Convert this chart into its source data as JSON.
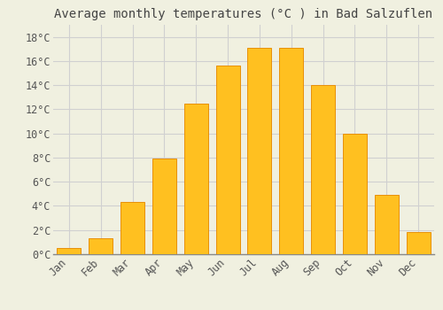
{
  "title": "Average monthly temperatures (°C ) in Bad Salzuflen",
  "months": [
    "Jan",
    "Feb",
    "Mar",
    "Apr",
    "May",
    "Jun",
    "Jul",
    "Aug",
    "Sep",
    "Oct",
    "Nov",
    "Dec"
  ],
  "values": [
    0.5,
    1.3,
    4.3,
    7.9,
    12.5,
    15.6,
    17.1,
    17.1,
    14.0,
    10.0,
    4.9,
    1.8
  ],
  "bar_color": "#FFC020",
  "bar_edge_color": "#E8900A",
  "background_color": "#F0F0E0",
  "grid_color": "#D0D0D0",
  "ylim": [
    0,
    19
  ],
  "yticks": [
    0,
    2,
    4,
    6,
    8,
    10,
    12,
    14,
    16,
    18
  ],
  "ytick_labels": [
    "0°C",
    "2°C",
    "4°C",
    "6°C",
    "8°C",
    "10°C",
    "12°C",
    "14°C",
    "16°C",
    "18°C"
  ],
  "title_fontsize": 10,
  "tick_fontsize": 8.5,
  "font_family": "monospace",
  "bar_width": 0.75
}
